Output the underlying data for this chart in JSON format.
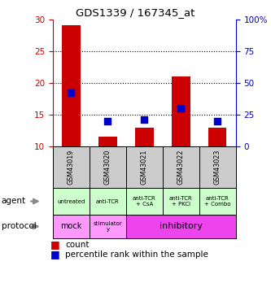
{
  "title": "GDS1339 / 167345_at",
  "samples": [
    "GSM43019",
    "GSM43020",
    "GSM43021",
    "GSM43022",
    "GSM43023"
  ],
  "count_values": [
    29.2,
    11.5,
    13.0,
    21.0,
    13.0
  ],
  "count_bottom": [
    10.0,
    10.0,
    10.0,
    10.0,
    10.0
  ],
  "percentile_values": [
    42.5,
    20.0,
    21.5,
    30.0,
    20.0
  ],
  "ylim_left": [
    10,
    30
  ],
  "ylim_right": [
    0,
    100
  ],
  "yticks_left": [
    10,
    15,
    20,
    25,
    30
  ],
  "yticks_right": [
    0,
    25,
    50,
    75,
    100
  ],
  "ytick_labels_right": [
    "0",
    "25",
    "50",
    "75",
    "100%"
  ],
  "agent_labels": [
    "untreated",
    "anti-TCR",
    "anti-TCR\n+ CsA",
    "anti-TCR\n+ PKCi",
    "anti-TCR\n+ Combo"
  ],
  "sample_bg_color": "#cccccc",
  "agent_bg_color": "#ccffcc",
  "protocol_mock_color": "#ff99ff",
  "protocol_stimulatory_color": "#ff99ff",
  "protocol_inhibitory_color": "#ee44ee",
  "bar_color": "#cc0000",
  "dot_color": "#0000cc",
  "left_tick_color": "#cc0000",
  "right_tick_color": "#0000cc",
  "bar_width": 0.5,
  "dot_size": 30
}
